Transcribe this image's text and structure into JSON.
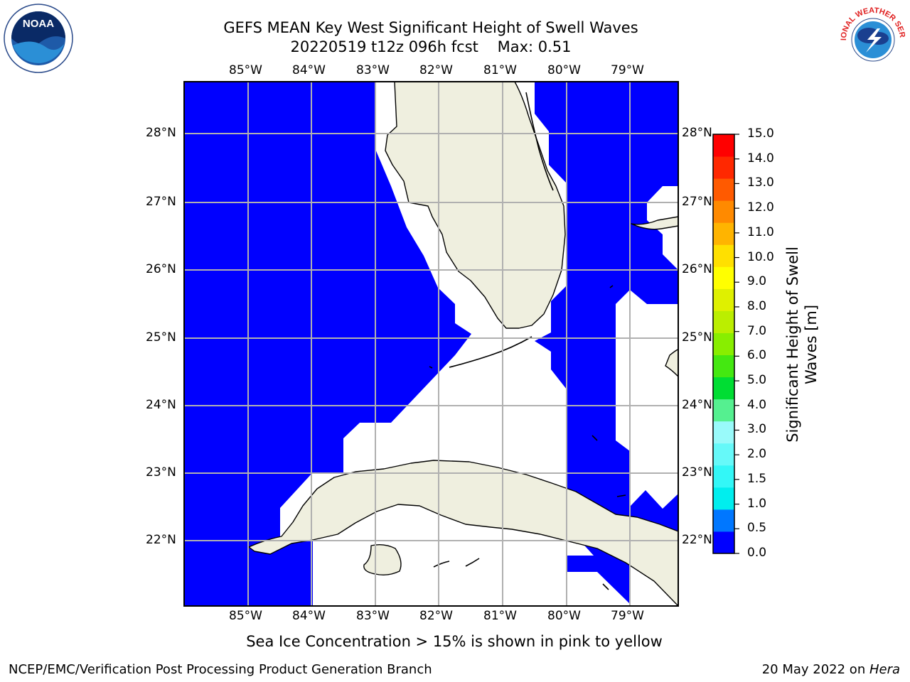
{
  "title_line1": "GEFS MEAN Key West Significant Height of Swell Waves",
  "title_line2": "20220519 t12z 096h fcst    Max: 0.51",
  "subtitle": "Sea Ice Concentration > 15% is shown in pink to yellow",
  "footer_left": "NCEP/EMC/Verification Post Processing Product Generation Branch",
  "footer_date": "20 May 2022 on ",
  "footer_host": "Hera",
  "logo_left": "NOAA",
  "logo_right_text": "NATIONAL WEATHER SERVICE",
  "map": {
    "lon_labels": [
      "85°W",
      "84°W",
      "83°W",
      "82°W",
      "81°W",
      "80°W",
      "79°W"
    ],
    "lat_labels": [
      "28°N",
      "27°N",
      "26°N",
      "25°N",
      "24°N",
      "23°N",
      "22°N"
    ],
    "ocean_color": "#0000ff",
    "land_color": "#efefdf",
    "nodata_color": "#ffffff",
    "grid_color": "#b0b0b0"
  },
  "colorbar": {
    "label_line1": "Significant Height of Swell",
    "label_line2": "Waves [m]",
    "ticks": [
      "0.0",
      "0.5",
      "1.0",
      "1.5",
      "2.0",
      "3.0",
      "4.0",
      "5.0",
      "6.0",
      "7.0",
      "8.0",
      "9.0",
      "10.0",
      "11.0",
      "12.0",
      "13.0",
      "14.0",
      "15.0"
    ],
    "colors": [
      "#0000ff",
      "#0077ff",
      "#00eeee",
      "#33f7f7",
      "#66f9f9",
      "#99fafa",
      "#55f090",
      "#00dd33",
      "#44e811",
      "#88ee00",
      "#bbee00",
      "#dff000",
      "#ffff00",
      "#ffe000",
      "#ffb400",
      "#ff8a00",
      "#ff5a00",
      "#ff2800",
      "#ff0000"
    ]
  }
}
